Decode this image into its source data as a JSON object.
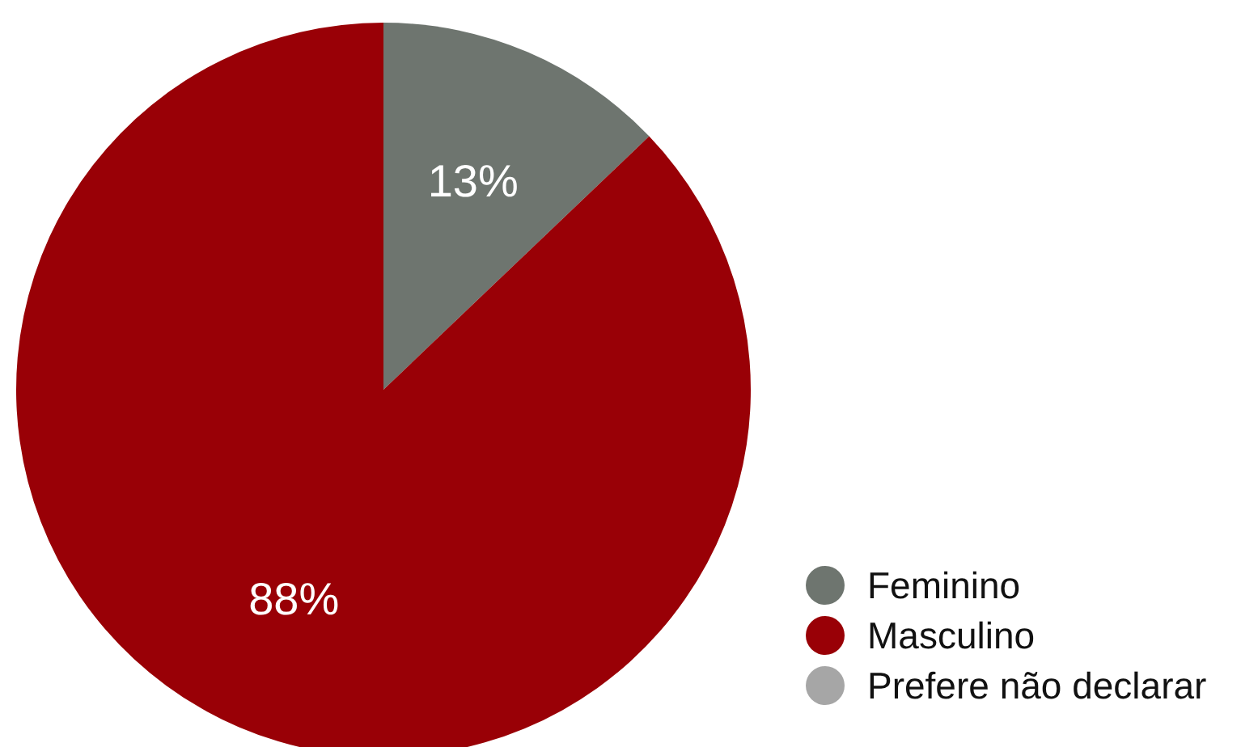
{
  "chart_data": {
    "type": "pie",
    "categories": [
      "Feminino",
      "Masculino",
      "Prefere não declarar"
    ],
    "values": [
      13,
      88,
      0
    ],
    "colors": [
      "#6e756f",
      "#990006",
      "#a6a6a6"
    ],
    "value_labels": [
      "13%",
      "88%",
      null
    ],
    "legend": "bottom right"
  }
}
